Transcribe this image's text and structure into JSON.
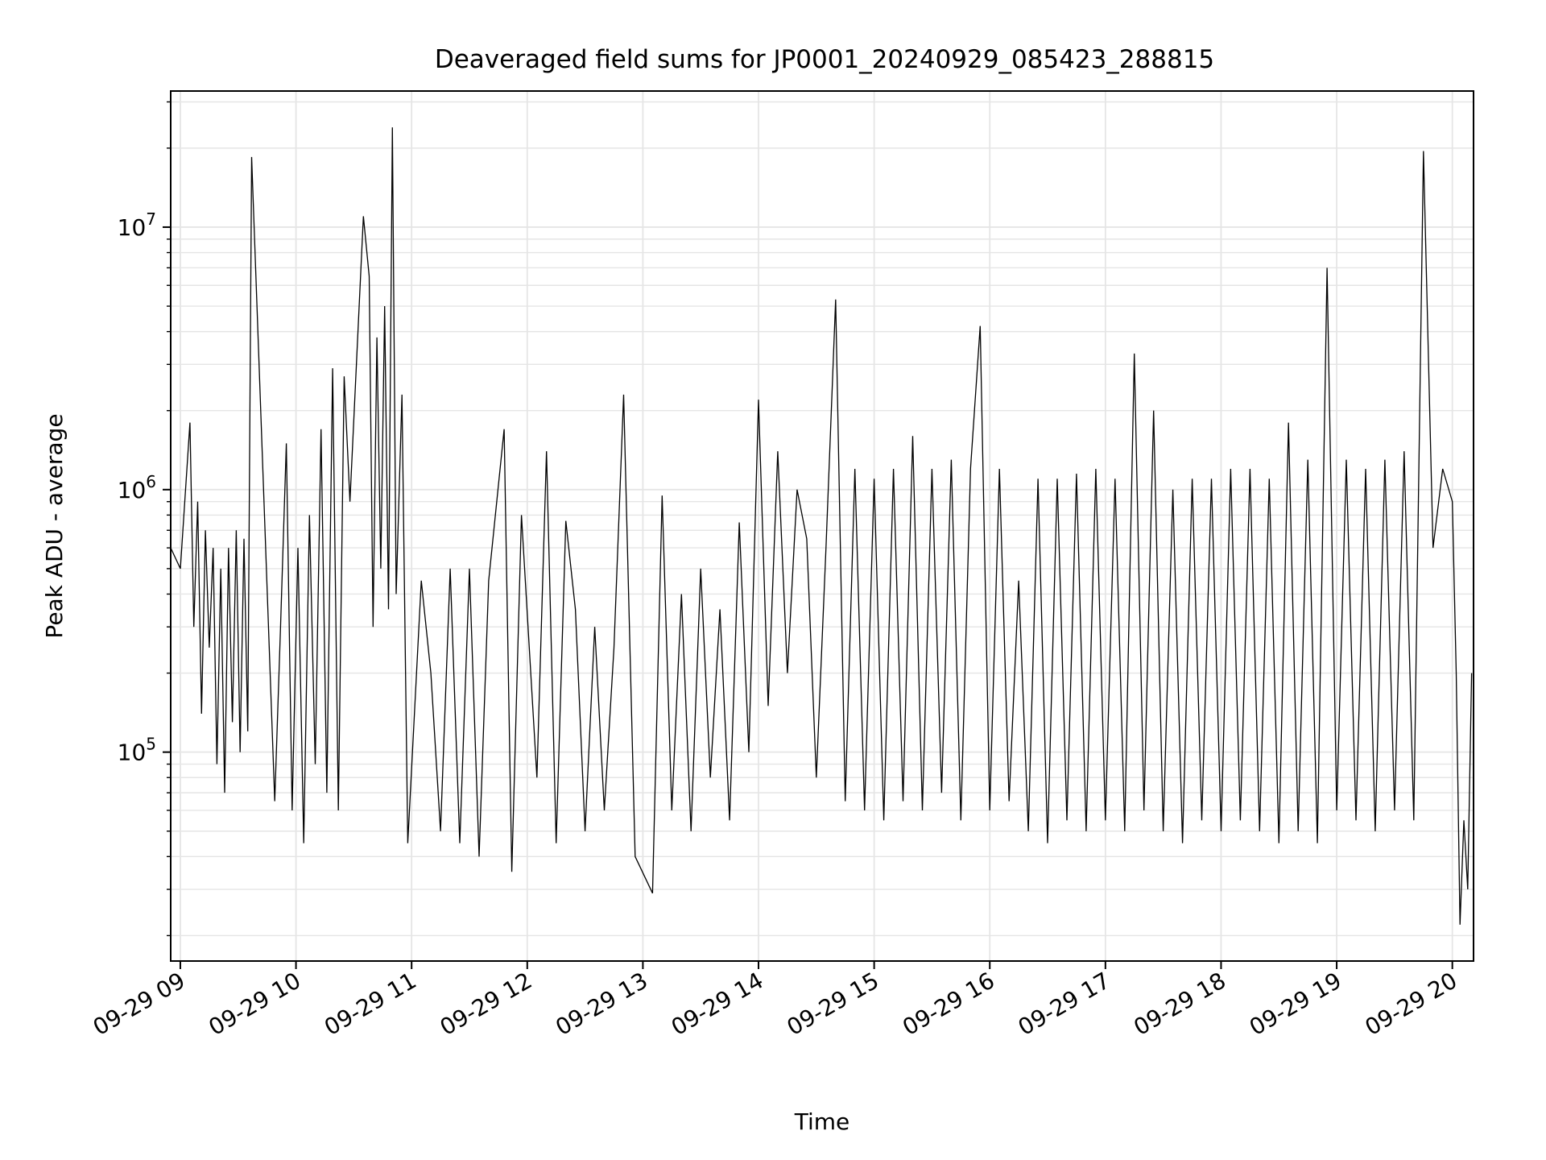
{
  "chart_data": {
    "type": "line",
    "title": "Deaveraged field sums for JP0001_20240929_085423_288815",
    "xlabel": "Time",
    "ylabel": "Peak ADU - average",
    "yscale": "log",
    "ylim": [
      16000,
      33000000
    ],
    "xlim": [
      "2024-09-29 08:55",
      "2024-09-29 20:11"
    ],
    "grid": true,
    "line_color": "#000000",
    "grid_color": "#e5e5e5",
    "x_ticks": [
      {
        "value": "2024-09-29 09:00",
        "label": "09-29 09"
      },
      {
        "value": "2024-09-29 10:00",
        "label": "09-29 10"
      },
      {
        "value": "2024-09-29 11:00",
        "label": "09-29 11"
      },
      {
        "value": "2024-09-29 12:00",
        "label": "09-29 12"
      },
      {
        "value": "2024-09-29 13:00",
        "label": "09-29 13"
      },
      {
        "value": "2024-09-29 14:00",
        "label": "09-29 14"
      },
      {
        "value": "2024-09-29 15:00",
        "label": "09-29 15"
      },
      {
        "value": "2024-09-29 16:00",
        "label": "09-29 16"
      },
      {
        "value": "2024-09-29 17:00",
        "label": "09-29 17"
      },
      {
        "value": "2024-09-29 18:00",
        "label": "09-29 18"
      },
      {
        "value": "2024-09-29 19:00",
        "label": "09-29 19"
      },
      {
        "value": "2024-09-29 20:00",
        "label": "09-29 20"
      }
    ],
    "y_ticks": [
      {
        "value": 100000,
        "base": "10",
        "exp": "5"
      },
      {
        "value": 1000000,
        "base": "10",
        "exp": "6"
      },
      {
        "value": 10000000,
        "base": "10",
        "exp": "7"
      }
    ],
    "series": [
      {
        "x": [
          "2024-09-29 08:55",
          "2024-09-29 09:00",
          "2024-09-29 09:05",
          "2024-09-29 09:07",
          "2024-09-29 09:09",
          "2024-09-29 09:11",
          "2024-09-29 09:13",
          "2024-09-29 09:15",
          "2024-09-29 09:17",
          "2024-09-29 09:19",
          "2024-09-29 09:21",
          "2024-09-29 09:23",
          "2024-09-29 09:25",
          "2024-09-29 09:27",
          "2024-09-29 09:29",
          "2024-09-29 09:31",
          "2024-09-29 09:33",
          "2024-09-29 09:35",
          "2024-09-29 09:37",
          "2024-09-29 09:49",
          "2024-09-29 09:52",
          "2024-09-29 09:55",
          "2024-09-29 09:58",
          "2024-09-29 10:01",
          "2024-09-29 10:04",
          "2024-09-29 10:07",
          "2024-09-29 10:10",
          "2024-09-29 10:13",
          "2024-09-29 10:16",
          "2024-09-29 10:19",
          "2024-09-29 10:22",
          "2024-09-29 10:25",
          "2024-09-29 10:28",
          "2024-09-29 10:35",
          "2024-09-29 10:38",
          "2024-09-29 10:40",
          "2024-09-29 10:42",
          "2024-09-29 10:44",
          "2024-09-29 10:46",
          "2024-09-29 10:48",
          "2024-09-29 10:50",
          "2024-09-29 10:52",
          "2024-09-29 10:55",
          "2024-09-29 10:58",
          "2024-09-29 11:05",
          "2024-09-29 11:10",
          "2024-09-29 11:15",
          "2024-09-29 11:20",
          "2024-09-29 11:25",
          "2024-09-29 11:30",
          "2024-09-29 11:35",
          "2024-09-29 11:40",
          "2024-09-29 11:48",
          "2024-09-29 11:52",
          "2024-09-29 11:57",
          "2024-09-29 12:05",
          "2024-09-29 12:10",
          "2024-09-29 12:15",
          "2024-09-29 12:20",
          "2024-09-29 12:25",
          "2024-09-29 12:30",
          "2024-09-29 12:35",
          "2024-09-29 12:40",
          "2024-09-29 12:45",
          "2024-09-29 12:50",
          "2024-09-29 12:56",
          "2024-09-29 13:05",
          "2024-09-29 13:10",
          "2024-09-29 13:15",
          "2024-09-29 13:20",
          "2024-09-29 13:25",
          "2024-09-29 13:30",
          "2024-09-29 13:35",
          "2024-09-29 13:40",
          "2024-09-29 13:45",
          "2024-09-29 13:50",
          "2024-09-29 13:55",
          "2024-09-29 14:00",
          "2024-09-29 14:05",
          "2024-09-29 14:10",
          "2024-09-29 14:15",
          "2024-09-29 14:20",
          "2024-09-29 14:25",
          "2024-09-29 14:30",
          "2024-09-29 14:35",
          "2024-09-29 14:40",
          "2024-09-29 14:45",
          "2024-09-29 14:50",
          "2024-09-29 14:55",
          "2024-09-29 15:00",
          "2024-09-29 15:05",
          "2024-09-29 15:10",
          "2024-09-29 15:15",
          "2024-09-29 15:20",
          "2024-09-29 15:25",
          "2024-09-29 15:30",
          "2024-09-29 15:35",
          "2024-09-29 15:40",
          "2024-09-29 15:45",
          "2024-09-29 15:50",
          "2024-09-29 15:55",
          "2024-09-29 16:00",
          "2024-09-29 16:05",
          "2024-09-29 16:10",
          "2024-09-29 16:15",
          "2024-09-29 16:20",
          "2024-09-29 16:25",
          "2024-09-29 16:30",
          "2024-09-29 16:35",
          "2024-09-29 16:40",
          "2024-09-29 16:45",
          "2024-09-29 16:50",
          "2024-09-29 16:55",
          "2024-09-29 17:00",
          "2024-09-29 17:05",
          "2024-09-29 17:10",
          "2024-09-29 17:15",
          "2024-09-29 17:20",
          "2024-09-29 17:25",
          "2024-09-29 17:30",
          "2024-09-29 17:35",
          "2024-09-29 17:40",
          "2024-09-29 17:45",
          "2024-09-29 17:50",
          "2024-09-29 17:55",
          "2024-09-29 18:00",
          "2024-09-29 18:05",
          "2024-09-29 18:10",
          "2024-09-29 18:15",
          "2024-09-29 18:20",
          "2024-09-29 18:25",
          "2024-09-29 18:30",
          "2024-09-29 18:35",
          "2024-09-29 18:40",
          "2024-09-29 18:45",
          "2024-09-29 18:50",
          "2024-09-29 18:55",
          "2024-09-29 19:00",
          "2024-09-29 19:05",
          "2024-09-29 19:10",
          "2024-09-29 19:15",
          "2024-09-29 19:20",
          "2024-09-29 19:25",
          "2024-09-29 19:30",
          "2024-09-29 19:35",
          "2024-09-29 19:40",
          "2024-09-29 19:45",
          "2024-09-29 19:50",
          "2024-09-29 19:55",
          "2024-09-29 20:00",
          "2024-09-29 20:02",
          "2024-09-29 20:04",
          "2024-09-29 20:06",
          "2024-09-29 20:08",
          "2024-09-29 20:10"
        ],
        "values": [
          600000,
          500000,
          1800000,
          300000,
          900000,
          140000,
          700000,
          250000,
          600000,
          90000,
          500000,
          70000,
          600000,
          130000,
          700000,
          100000,
          650000,
          120000,
          18500000,
          65000,
          300000,
          1500000,
          60000,
          600000,
          45000,
          800000,
          90000,
          1700000,
          70000,
          2900000,
          60000,
          2700000,
          900000,
          11000000,
          6500000,
          300000,
          3800000,
          500000,
          5000000,
          350000,
          24000000,
          400000,
          2300000,
          45000,
          450000,
          200000,
          50000,
          500000,
          45000,
          500000,
          40000,
          450000,
          1700000,
          35000,
          800000,
          80000,
          1400000,
          45000,
          760000,
          350000,
          50000,
          300000,
          60000,
          250000,
          2300000,
          40000,
          29000,
          950000,
          60000,
          400000,
          50000,
          500000,
          80000,
          350000,
          55000,
          750000,
          100000,
          2200000,
          150000,
          1400000,
          200000,
          1000000,
          650000,
          80000,
          600000,
          5300000,
          65000,
          1200000,
          60000,
          1100000,
          55000,
          1200000,
          65000,
          1600000,
          60000,
          1200000,
          70000,
          1300000,
          55000,
          1200000,
          4200000,
          60000,
          1200000,
          65000,
          450000,
          50000,
          1100000,
          45000,
          1100000,
          55000,
          1150000,
          50000,
          1200000,
          55000,
          1100000,
          50000,
          3300000,
          60000,
          2000000,
          50000,
          1000000,
          45000,
          1100000,
          55000,
          1100000,
          50000,
          1200000,
          55000,
          1200000,
          50000,
          1100000,
          45000,
          1800000,
          50000,
          1300000,
          45000,
          7000000,
          60000,
          1300000,
          55000,
          1200000,
          50000,
          1300000,
          60000,
          1400000,
          55000,
          19500000,
          600000,
          1200000,
          900000,
          200000,
          22000,
          55000,
          30000,
          200000
        ]
      }
    ]
  }
}
